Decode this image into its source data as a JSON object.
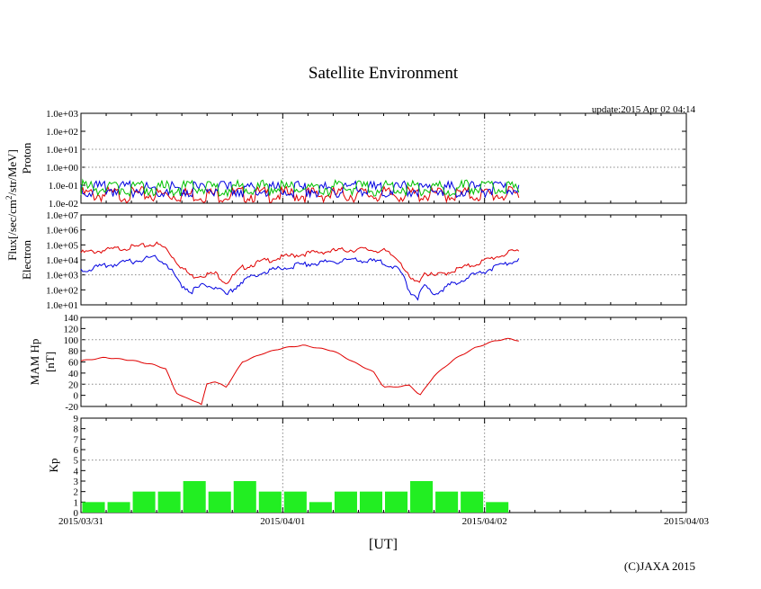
{
  "title": "Satellite Environment",
  "update_label": "update:2015 Apr 02 04:14",
  "copyright": "(C)JAXA 2015",
  "xlabel": "[UT]",
  "flux_label": "Flux[/sec/cm",
  "flux_label_sup": "2",
  "flux_label_tail": "/str/MeV]",
  "colors": {
    "red": "#e00000",
    "blue": "#0000e0",
    "green": "#00c000",
    "kp_bar": "#22ee22",
    "grid": "#888888"
  },
  "chart_data": [
    {
      "type": "line",
      "panel": "proton",
      "ylabel": "Proton",
      "yscale": "log",
      "ylim": [
        0.01,
        1000
      ],
      "yticks": [
        "1.0e-02",
        "1.0e-01",
        "1.0e+00",
        "1.0e+01",
        "1.0e+02",
        "1.0e+03"
      ],
      "xlim": [
        "2015/03/31",
        "2015/04/03"
      ],
      "series": [
        {
          "color": "red",
          "x_days": [
            0,
            0.25,
            0.5,
            0.75,
            1.0,
            1.25,
            1.5,
            1.75,
            2.0,
            2.17
          ],
          "values": [
            0.03,
            0.03,
            0.03,
            0.03,
            0.03,
            0.03,
            0.03,
            0.03,
            0.03,
            0.03
          ]
        },
        {
          "color": "blue",
          "x_days": [
            0,
            0.25,
            0.5,
            0.75,
            1.0,
            1.25,
            1.5,
            1.75,
            2.0,
            2.17
          ],
          "values": [
            0.06,
            0.06,
            0.06,
            0.06,
            0.06,
            0.06,
            0.06,
            0.06,
            0.06,
            0.06
          ]
        },
        {
          "color": "green",
          "x_days": [
            0,
            0.25,
            0.5,
            0.75,
            1.0,
            1.25,
            1.5,
            1.75,
            2.0,
            2.17
          ],
          "values": [
            0.07,
            0.07,
            0.07,
            0.07,
            0.07,
            0.07,
            0.07,
            0.07,
            0.07,
            0.07
          ]
        }
      ]
    },
    {
      "type": "line",
      "panel": "electron",
      "ylabel": "Electron",
      "yscale": "log",
      "ylim": [
        10,
        10000000
      ],
      "yticks": [
        "1.0e+01",
        "1.0e+02",
        "1.0e+03",
        "1.0e+04",
        "1.0e+05",
        "1.0e+06",
        "1.0e+07"
      ],
      "xlim": [
        "2015/03/31",
        "2015/04/03"
      ],
      "series": [
        {
          "color": "red",
          "x_days": [
            0,
            0.1,
            0.2,
            0.3,
            0.37,
            0.42,
            0.5,
            0.55,
            0.6,
            0.67,
            0.72,
            0.8,
            0.9,
            1.0,
            1.1,
            1.2,
            1.3,
            1.4,
            1.5,
            1.58,
            1.63,
            1.67,
            1.7,
            1.75,
            1.85,
            1.95,
            2.05,
            2.17
          ],
          "values": [
            30000,
            40000,
            60000,
            80000,
            120000,
            60000,
            3000,
            800,
            1000,
            1200,
            300,
            3000,
            8000,
            15000,
            25000,
            35000,
            45000,
            50000,
            40000,
            10000,
            500,
            300,
            1500,
            800,
            2000,
            5000,
            15000,
            45000
          ]
        },
        {
          "color": "blue",
          "x_days": [
            0,
            0.1,
            0.2,
            0.3,
            0.37,
            0.42,
            0.5,
            0.55,
            0.6,
            0.67,
            0.72,
            0.8,
            0.9,
            1.0,
            1.1,
            1.2,
            1.3,
            1.4,
            1.5,
            1.58,
            1.63,
            1.67,
            1.7,
            1.75,
            1.85,
            1.95,
            2.05,
            2.17
          ],
          "values": [
            2000,
            3500,
            6000,
            10000,
            18000,
            6000,
            200,
            80,
            200,
            150,
            40,
            400,
            1500,
            3000,
            5000,
            7000,
            9000,
            9000,
            7000,
            2000,
            80,
            30,
            200,
            50,
            300,
            1000,
            3000,
            10000
          ]
        }
      ]
    },
    {
      "type": "line",
      "panel": "mam-hp",
      "ylabel": "MAM Hp",
      "ylabel2": "[nT]",
      "ylim": [
        -20,
        140
      ],
      "yticks": [
        "-20",
        "0",
        "20",
        "40",
        "60",
        "80",
        "100",
        "120",
        "140"
      ],
      "xlim": [
        "2015/03/31",
        "2015/04/03"
      ],
      "series": [
        {
          "color": "red",
          "x_days": [
            0,
            0.12,
            0.25,
            0.36,
            0.42,
            0.47,
            0.52,
            0.58,
            0.6,
            0.62,
            0.66,
            0.72,
            0.8,
            0.9,
            1.0,
            1.1,
            1.25,
            1.35,
            1.45,
            1.5,
            1.55,
            1.63,
            1.68,
            1.75,
            1.85,
            1.95,
            2.05,
            2.12,
            2.17
          ],
          "values": [
            62,
            68,
            63,
            55,
            48,
            5,
            -5,
            -12,
            -18,
            20,
            25,
            15,
            60,
            75,
            85,
            90,
            80,
            60,
            42,
            15,
            15,
            18,
            0,
            35,
            65,
            85,
            98,
            102,
            98
          ]
        }
      ]
    },
    {
      "type": "bar",
      "panel": "kp",
      "ylabel": "Kp",
      "ylim": [
        0,
        9
      ],
      "yticks": [
        "0",
        "1",
        "2",
        "3",
        "4",
        "5",
        "6",
        "7",
        "8",
        "9"
      ],
      "xlim": [
        "2015/03/31",
        "2015/04/03"
      ],
      "xticks": [
        "2015/03/31",
        "2015/04/01",
        "2015/04/02",
        "2015/04/03"
      ],
      "values": [
        1,
        1,
        2,
        2,
        3,
        2,
        3,
        2,
        2,
        1,
        2,
        2,
        2,
        3,
        2,
        2,
        1
      ]
    }
  ]
}
